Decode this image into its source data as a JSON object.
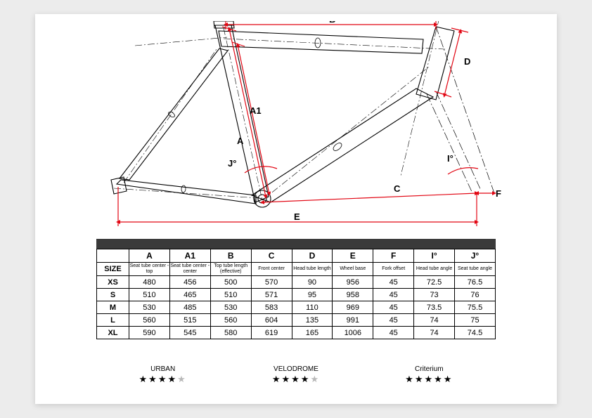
{
  "diagram": {
    "type": "technical-drawing",
    "accent_color": "#e20613",
    "outline_color": "#000000",
    "labels": {
      "A": "A",
      "A1": "A1",
      "B": "B",
      "C": "C",
      "D": "D",
      "E": "E",
      "F": "F",
      "I": "I°",
      "J": "J°"
    }
  },
  "table": {
    "header_bar_color": "#3a3a3a",
    "size_label": "SIZE",
    "columns": [
      {
        "code": "A",
        "desc": "Seat tube center - top"
      },
      {
        "code": "A1",
        "desc": "Seat tube center - center"
      },
      {
        "code": "B",
        "desc": "Top tube length (effective)"
      },
      {
        "code": "C",
        "desc": "Front center"
      },
      {
        "code": "D",
        "desc": "Head tube length"
      },
      {
        "code": "E",
        "desc": "Wheel base"
      },
      {
        "code": "F",
        "desc": "Fork offset"
      },
      {
        "code": "I°",
        "desc": "Head tube angle"
      },
      {
        "code": "J°",
        "desc": "Seat tube angle"
      }
    ],
    "rows": [
      {
        "size": "XS",
        "v": [
          "480",
          "456",
          "500",
          "570",
          "90",
          "956",
          "45",
          "72.5",
          "76.5"
        ]
      },
      {
        "size": "S",
        "v": [
          "510",
          "465",
          "510",
          "571",
          "95",
          "958",
          "45",
          "73",
          "76"
        ]
      },
      {
        "size": "M",
        "v": [
          "530",
          "485",
          "530",
          "583",
          "110",
          "969",
          "45",
          "73.5",
          "75.5"
        ]
      },
      {
        "size": "L",
        "v": [
          "560",
          "515",
          "560",
          "604",
          "135",
          "991",
          "45",
          "74",
          "75"
        ]
      },
      {
        "size": "XL",
        "v": [
          "590",
          "545",
          "580",
          "619",
          "165",
          "1006",
          "45",
          "74",
          "74.5"
        ]
      }
    ]
  },
  "ratings": [
    {
      "name": "URBAN",
      "stars": 4,
      "max": 5
    },
    {
      "name": "VELODROME",
      "stars": 4,
      "max": 5
    },
    {
      "name": "Criterium",
      "stars": 5,
      "max": 5
    }
  ]
}
